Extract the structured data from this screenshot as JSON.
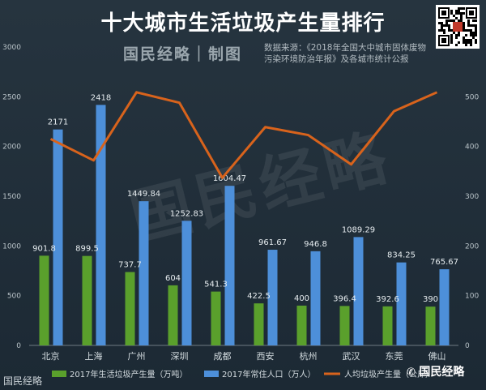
{
  "header": {
    "title": "十大城市生活垃圾产生量排行",
    "brand": "国民经略｜制图",
    "source_line1": "数据来源：《2018年全国大中城市固体废物",
    "source_line2": "污染环境防治年报》及各城市统计公报",
    "watermark": "国民经略",
    "corner_mark": "国民经略",
    "bottom_brand": "国民经略",
    "qr_icon": "qr-code-icon"
  },
  "colors": {
    "garbage": "#5aa02c",
    "population": "#4d8fd9",
    "per_capita": "#d8631c",
    "background": "#1f2d38"
  },
  "chart_data": {
    "type": "bar",
    "categories": [
      "北京",
      "上海",
      "广州",
      "深圳",
      "成都",
      "西安",
      "杭州",
      "武汉",
      "东莞",
      "佛山"
    ],
    "series": [
      {
        "name": "2017年生活垃圾产生量（万吨）",
        "type": "bar",
        "axis": "left",
        "values": [
          901.8,
          899.5,
          737.7,
          604,
          541.3,
          422.5,
          400,
          396.4,
          392.6,
          390
        ],
        "labels": [
          "901.8",
          "899.5",
          "737.7",
          "604",
          "541.3",
          "422.5",
          "400",
          "396.4",
          "392.6",
          "390"
        ]
      },
      {
        "name": "2017年常住人口（万人）",
        "type": "bar",
        "axis": "left",
        "values": [
          2171,
          2418,
          1449.84,
          1252.83,
          1604.47,
          961.67,
          946.8,
          1089.29,
          834.25,
          765.67
        ],
        "labels": [
          "2171",
          "2418",
          "1449.84",
          "1252.83",
          "1604.47",
          "961.67",
          "946.8",
          "1089.29",
          "834.25",
          "765.67"
        ]
      },
      {
        "name": "人均垃圾产生量（公斤）",
        "type": "line",
        "axis": "right",
        "values": [
          415,
          372,
          509,
          488,
          337,
          439,
          423,
          364,
          471,
          509
        ]
      }
    ],
    "y_left": {
      "min": 0,
      "max": 3000,
      "ticks": [
        "0",
        "500",
        "1000",
        "1500",
        "2000",
        "2500",
        "3000"
      ]
    },
    "y_right": {
      "min": 0,
      "max": 600,
      "ticks": [
        "0",
        "100",
        "200",
        "300",
        "400",
        "500"
      ]
    },
    "grid": false,
    "legend_position": "bottom"
  }
}
